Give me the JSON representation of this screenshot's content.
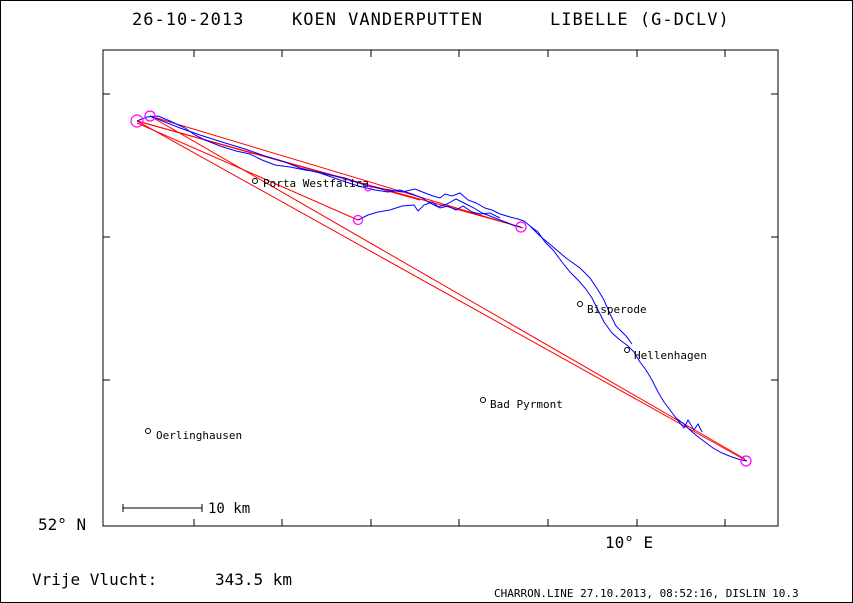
{
  "header": {
    "date": "26-10-2013",
    "pilot": "KOEN VANDERPUTTEN",
    "glider": "LIBELLE (G-DCLV)"
  },
  "axes": {
    "y_label": "52° N",
    "x_label": "10° E"
  },
  "scale_bar": {
    "label": "10 km"
  },
  "places": [
    {
      "name": "Porta Westfalica"
    },
    {
      "name": "Bisperode"
    },
    {
      "name": "Hellenhagen"
    },
    {
      "name": "Bad Pyrmont"
    },
    {
      "name": "Oerlinghausen"
    }
  ],
  "summary": {
    "label": "Vrije Vlucht:",
    "distance": "343.5 km"
  },
  "footer": {
    "text": "CHARRON.LINE 27.10.2013, 08:52:16, DISLIN 10.3"
  },
  "colors": {
    "track": "#0000ff",
    "task": "#ff0000",
    "turnpoint": "#ff00ff",
    "frame": "#000000"
  }
}
